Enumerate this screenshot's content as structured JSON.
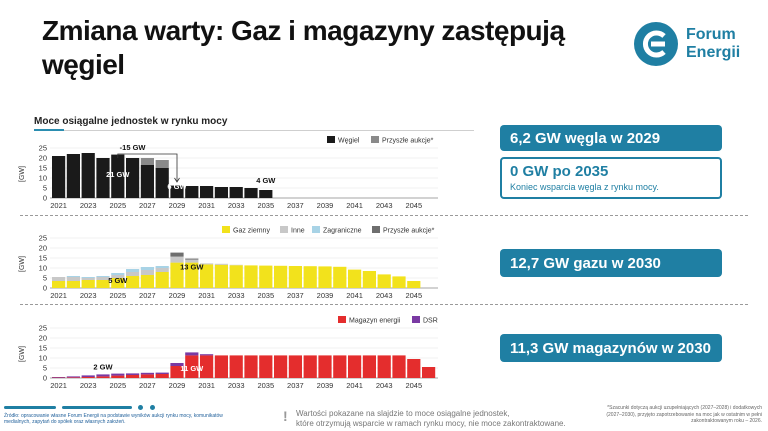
{
  "slide": {
    "title": "Zmiana warty: Gaz i magazyny zastępują węgiel",
    "logo_text_line1": "Forum",
    "logo_text_line2": "Energii",
    "section_title": "Moce osiągalne jednostek w rynku mocy",
    "brand_color": "#1f7fa3"
  },
  "callouts": [
    {
      "text": "6,2 GW węgla w 2029"
    },
    {
      "text": "0 GW po 2035",
      "subtext": "Koniec wsparcia węgla z rynku mocy."
    },
    {
      "text": "12,7 GW gazu w 2030"
    },
    {
      "text": "11,3 GW magazynów w 2030"
    }
  ],
  "footer": {
    "source": "Źródło: opracowanie własne Forum Energii na podstawie wyników aukcji rynku mocy, komunikatów medialnych, zapytań do spółek oraz własnych założeń.",
    "note_line1": "Wartości pokazane na slajdzie to moce osiągalne jednostek,",
    "note_line2": "które otrzymują wsparcie w ramach rynku mocy, nie moce zakontraktowane.",
    "asterisk_note": "*Szacunki dotyczą aukcji uzupełniających (2027–2028) i dodatkowych (2027–2030), przyjęto zapotrzebowanie na moc jak w ostatnim w pełni zakontraktowanym roku – 2026."
  },
  "chart_data": [
    {
      "type": "bar",
      "stacked": true,
      "ylabel": "[GW]",
      "ylim": [
        0,
        25
      ],
      "yticks": [
        0,
        5,
        10,
        15,
        20,
        25
      ],
      "xtick_labels": [
        "2021",
        "2023",
        "2025",
        "2027",
        "2029",
        "2031",
        "2033",
        "2035",
        "2037",
        "2039",
        "2041",
        "2043",
        "2045"
      ],
      "categories": [
        "2021",
        "2022",
        "2023",
        "2024",
        "2025",
        "2026",
        "2027",
        "2028",
        "2029",
        "2030",
        "2031",
        "2032",
        "2033",
        "2034",
        "2035",
        "2036",
        "2037",
        "2038",
        "2039",
        "2040",
        "2041",
        "2042",
        "2043",
        "2044",
        "2045",
        "2046"
      ],
      "legend_position": "top-right",
      "series": [
        {
          "name": "Węgiel",
          "color": "#1a1a1a",
          "values": [
            21,
            22,
            22.5,
            20,
            21.7,
            20,
            16.5,
            15,
            6.2,
            6,
            6,
            5.5,
            5.5,
            5,
            4,
            0,
            0,
            0,
            0,
            0,
            0,
            0,
            0,
            0,
            0,
            0
          ]
        },
        {
          "name": "Przyszłe aukcje*",
          "color": "#8a8a8a",
          "values": [
            0,
            0,
            0,
            0,
            0,
            0,
            3.5,
            4,
            0,
            0,
            0,
            0,
            0,
            0,
            0,
            0,
            0,
            0,
            0,
            0,
            0,
            0,
            0,
            0,
            0,
            0
          ]
        }
      ],
      "annotations": [
        "21 GW",
        "-15 GW",
        "6 GW",
        "4 GW"
      ]
    },
    {
      "type": "bar",
      "stacked": true,
      "ylabel": "[GW]",
      "ylim": [
        0,
        25
      ],
      "yticks": [
        0,
        5,
        10,
        15,
        20,
        25
      ],
      "xtick_labels": [
        "2021",
        "2023",
        "2025",
        "2027",
        "2029",
        "2031",
        "2033",
        "2035",
        "2037",
        "2039",
        "2041",
        "2043",
        "2045"
      ],
      "categories": [
        "2021",
        "2022",
        "2023",
        "2024",
        "2025",
        "2026",
        "2027",
        "2028",
        "2029",
        "2030",
        "2031",
        "2032",
        "2033",
        "2034",
        "2035",
        "2036",
        "2037",
        "2038",
        "2039",
        "2040",
        "2041",
        "2042",
        "2043",
        "2044",
        "2045",
        "2046"
      ],
      "legend_position": "top-right",
      "series": [
        {
          "name": "Gaz ziemny",
          "color": "#f2e21c",
          "values": [
            3.5,
            3.5,
            4,
            4,
            5,
            6,
            6.5,
            8,
            12.7,
            12.7,
            11.8,
            11.6,
            11.4,
            11.3,
            11.2,
            11.1,
            11,
            10.9,
            10.8,
            10.6,
            9.2,
            8.5,
            6.8,
            5.8,
            3.5,
            0
          ]
        },
        {
          "name": "Inne",
          "color": "#c8c8c8",
          "values": [
            2,
            2,
            1,
            1.5,
            1.5,
            2,
            2.5,
            2,
            3,
            1.5,
            0.5,
            0.5,
            0.2,
            0,
            0,
            0,
            0,
            0,
            0,
            0,
            0,
            0,
            0,
            0,
            0,
            0
          ]
        },
        {
          "name": "Zagraniczne",
          "color": "#a8d3e6",
          "values": [
            0,
            0.5,
            0.5,
            0.5,
            1,
            1.5,
            1.5,
            1,
            0,
            0,
            0,
            0,
            0,
            0,
            0,
            0,
            0,
            0,
            0,
            0,
            0,
            0,
            0,
            0,
            0,
            0
          ]
        },
        {
          "name": "Przyszłe aukcje*",
          "color": "#6e6e6e",
          "values": [
            0,
            0,
            0,
            0,
            0,
            0,
            0,
            0,
            2,
            0.5,
            0,
            0,
            0,
            0,
            0,
            0,
            0,
            0,
            0,
            0,
            0,
            0,
            0,
            0,
            0,
            0
          ]
        }
      ],
      "annotations": [
        "5 GW",
        "13 GW"
      ]
    },
    {
      "type": "bar",
      "stacked": true,
      "ylabel": "[GW]",
      "ylim": [
        0,
        25
      ],
      "yticks": [
        0,
        5,
        10,
        15,
        20,
        25
      ],
      "xtick_labels": [
        "2021",
        "2023",
        "2025",
        "2027",
        "2029",
        "2031",
        "2033",
        "2035",
        "2037",
        "2039",
        "2041",
        "2043",
        "2045"
      ],
      "categories": [
        "2021",
        "2022",
        "2023",
        "2024",
        "2025",
        "2026",
        "2027",
        "2028",
        "2029",
        "2030",
        "2031",
        "2032",
        "2033",
        "2034",
        "2035",
        "2036",
        "2037",
        "2038",
        "2039",
        "2040",
        "2041",
        "2042",
        "2043",
        "2044",
        "2045",
        "2046"
      ],
      "legend_position": "top-right",
      "series": [
        {
          "name": "Magazyn energii",
          "color": "#e42d2d",
          "values": [
            0.2,
            0.3,
            0.5,
            0.8,
            1.2,
            1.5,
            1.8,
            2,
            6,
            11.3,
            11.3,
            11.3,
            11.3,
            11.3,
            11.3,
            11.3,
            11.3,
            11.3,
            11.3,
            11.3,
            11.3,
            11.3,
            11.3,
            11.3,
            9.5,
            5.5
          ]
        },
        {
          "name": "DSR",
          "color": "#7a3aa3",
          "values": [
            0.3,
            0.5,
            0.8,
            1,
            1,
            0.8,
            0.8,
            0.7,
            1.5,
            1.5,
            0.6,
            0,
            0,
            0,
            0,
            0,
            0,
            0,
            0,
            0,
            0,
            0,
            0,
            0,
            0,
            0
          ]
        }
      ],
      "annotations": [
        "2 GW",
        "11 GW"
      ]
    }
  ]
}
